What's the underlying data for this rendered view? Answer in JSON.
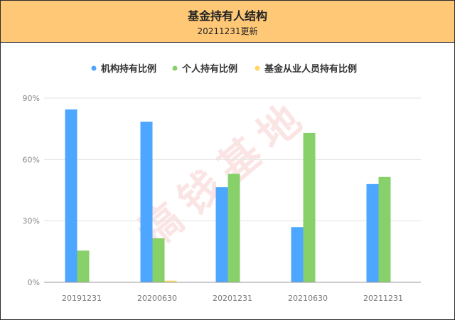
{
  "header": {
    "title": "基金持有人结构",
    "subtitle": "20211231更新"
  },
  "watermark": "搞钱基地",
  "chart_data": {
    "type": "bar",
    "categories": [
      "20191231",
      "20200630",
      "20201231",
      "20210630",
      "20211231"
    ],
    "series": [
      {
        "name": "机构持有比例",
        "color": "#4DA6FF",
        "values": [
          84.5,
          78.5,
          46.5,
          27.0,
          48.0
        ]
      },
      {
        "name": "个人持有比例",
        "color": "#88D06A",
        "values": [
          15.5,
          21.5,
          53.0,
          73.0,
          51.5
        ]
      },
      {
        "name": "基金从业人员持有比例",
        "color": "#FFD766",
        "values": [
          0.0,
          0.8,
          0.2,
          0.0,
          0.1
        ]
      }
    ],
    "ylim": [
      0,
      90
    ],
    "yticks": [
      0,
      30,
      60,
      90
    ],
    "ytick_labels": [
      "0%",
      "30%",
      "60%",
      "90%"
    ],
    "grid": true,
    "legend_position": "top"
  }
}
